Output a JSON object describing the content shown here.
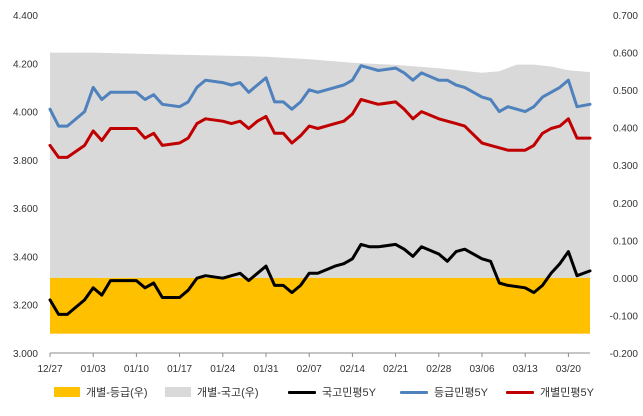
{
  "chart_data": {
    "type": "line",
    "title": "",
    "x_categories": [
      "12/27",
      "01/03",
      "01/10",
      "01/17",
      "01/24",
      "01/31",
      "02/07",
      "02/14",
      "02/21",
      "02/28",
      "03/06",
      "03/13",
      "03/20"
    ],
    "y_left": {
      "ylim": [
        3.0,
        4.4
      ],
      "ticks": [
        "3.000",
        "3.200",
        "3.400",
        "3.600",
        "3.800",
        "4.000",
        "4.200",
        "4.400"
      ]
    },
    "y_right": {
      "ylim": [
        -0.2,
        0.7
      ],
      "ticks": [
        "-0.200",
        "-0.100",
        "0.000",
        "0.100",
        "0.200",
        "0.300",
        "0.400",
        "0.500",
        "0.600",
        "0.700"
      ]
    },
    "grid": false,
    "legend_position": "bottom",
    "series": [
      {
        "name": "개별-등급(우)",
        "kind": "area",
        "axis": "right",
        "color": "#FFC000",
        "x": [
          0,
          12.5
        ],
        "values": [
          0.0,
          0.0
        ]
      },
      {
        "name": "개별-국고(우)",
        "kind": "area",
        "axis": "right",
        "color": "#D9D9D9",
        "x": [
          0,
          1,
          2,
          3,
          4,
          5,
          6,
          7,
          8,
          9,
          10,
          10.4,
          10.8,
          11.2,
          11.6,
          12,
          12.5
        ],
        "values": [
          0.6,
          0.6,
          0.597,
          0.594,
          0.592,
          0.589,
          0.582,
          0.573,
          0.567,
          0.558,
          0.546,
          0.55,
          0.568,
          0.568,
          0.563,
          0.553,
          0.548
        ]
      },
      {
        "name": "국고민평5Y",
        "kind": "line",
        "axis": "left",
        "color": "#000000",
        "x": [
          0,
          0.2,
          0.4,
          0.8,
          1,
          1.2,
          1.4,
          1.6,
          2,
          2.2,
          2.4,
          2.6,
          3,
          3.2,
          3.4,
          3.6,
          4,
          4.2,
          4.4,
          4.6,
          4.8,
          5,
          5.2,
          5.4,
          5.6,
          5.8,
          6,
          6.2,
          6.6,
          6.8,
          7,
          7.2,
          7.4,
          7.6,
          8,
          8.2,
          8.4,
          8.6,
          9,
          9.2,
          9.4,
          9.6,
          10,
          10.2,
          10.4,
          10.6,
          11,
          11.2,
          11.4,
          11.6,
          11.8,
          12,
          12.2,
          12.5
        ],
        "values": [
          3.22,
          3.16,
          3.16,
          3.22,
          3.27,
          3.24,
          3.3,
          3.3,
          3.3,
          3.27,
          3.29,
          3.23,
          3.23,
          3.26,
          3.31,
          3.32,
          3.31,
          3.32,
          3.33,
          3.3,
          3.33,
          3.36,
          3.28,
          3.28,
          3.25,
          3.28,
          3.33,
          3.33,
          3.36,
          3.37,
          3.39,
          3.45,
          3.44,
          3.44,
          3.45,
          3.43,
          3.4,
          3.44,
          3.41,
          3.38,
          3.42,
          3.43,
          3.39,
          3.38,
          3.29,
          3.28,
          3.27,
          3.25,
          3.28,
          3.33,
          3.37,
          3.42,
          3.32,
          3.34
        ]
      },
      {
        "name": "등급민평5Y",
        "kind": "line",
        "axis": "left",
        "color": "#4F81BD",
        "x": [
          0,
          0.2,
          0.4,
          0.8,
          1,
          1.2,
          1.4,
          1.6,
          2,
          2.2,
          2.4,
          2.6,
          3,
          3.2,
          3.4,
          3.6,
          4,
          4.2,
          4.4,
          4.6,
          4.8,
          5,
          5.2,
          5.4,
          5.6,
          5.8,
          6,
          6.2,
          6.6,
          6.8,
          7,
          7.2,
          7.4,
          7.6,
          8,
          8.2,
          8.4,
          8.6,
          9,
          9.2,
          9.4,
          9.6,
          10,
          10.2,
          10.4,
          10.6,
          11,
          11.2,
          11.4,
          11.6,
          11.8,
          12,
          12.2,
          12.5
        ],
        "values": [
          4.01,
          3.94,
          3.94,
          4.0,
          4.1,
          4.05,
          4.08,
          4.08,
          4.08,
          4.05,
          4.07,
          4.03,
          4.02,
          4.04,
          4.1,
          4.13,
          4.12,
          4.11,
          4.12,
          4.08,
          4.11,
          4.14,
          4.04,
          4.04,
          4.01,
          4.04,
          4.09,
          4.08,
          4.1,
          4.11,
          4.13,
          4.19,
          4.18,
          4.17,
          4.18,
          4.16,
          4.13,
          4.16,
          4.13,
          4.13,
          4.11,
          4.1,
          4.06,
          4.05,
          4.0,
          4.02,
          4.0,
          4.02,
          4.06,
          4.08,
          4.1,
          4.13,
          4.02,
          4.03
        ]
      },
      {
        "name": "개별민평5Y",
        "kind": "line",
        "axis": "left",
        "color": "#C00000",
        "x": [
          0,
          0.2,
          0.4,
          0.8,
          1,
          1.2,
          1.4,
          1.6,
          2,
          2.2,
          2.4,
          2.6,
          3,
          3.2,
          3.4,
          3.6,
          4,
          4.2,
          4.4,
          4.6,
          4.8,
          5,
          5.2,
          5.4,
          5.6,
          5.8,
          6,
          6.2,
          6.6,
          6.8,
          7,
          7.2,
          7.4,
          7.6,
          8,
          8.2,
          8.4,
          8.6,
          9,
          9.2,
          9.4,
          9.6,
          10,
          10.2,
          10.4,
          10.6,
          11,
          11.2,
          11.4,
          11.6,
          11.8,
          12,
          12.2,
          12.5
        ],
        "values": [
          3.86,
          3.81,
          3.81,
          3.86,
          3.92,
          3.88,
          3.93,
          3.93,
          3.93,
          3.89,
          3.91,
          3.86,
          3.87,
          3.89,
          3.95,
          3.97,
          3.96,
          3.95,
          3.96,
          3.93,
          3.96,
          3.98,
          3.91,
          3.91,
          3.87,
          3.9,
          3.94,
          3.93,
          3.95,
          3.96,
          3.99,
          4.05,
          4.04,
          4.03,
          4.04,
          4.01,
          3.97,
          4.0,
          3.97,
          3.96,
          3.95,
          3.94,
          3.87,
          3.86,
          3.85,
          3.84,
          3.84,
          3.86,
          3.91,
          3.93,
          3.94,
          3.97,
          3.89,
          3.89
        ]
      }
    ]
  }
}
